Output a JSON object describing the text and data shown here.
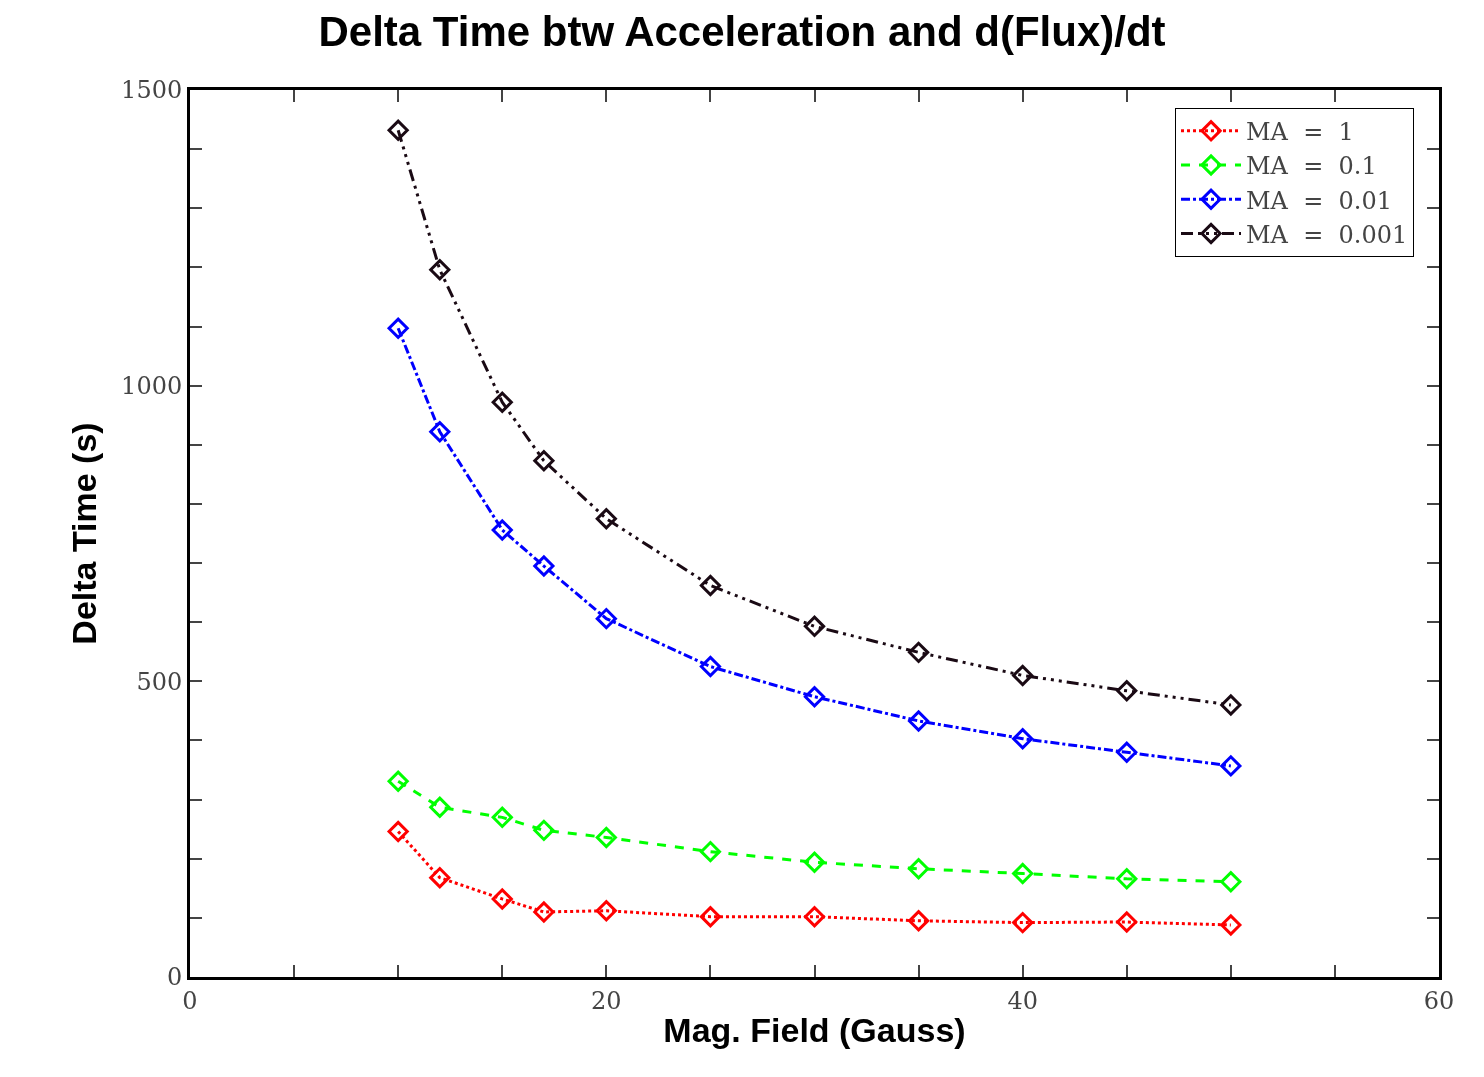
{
  "chart_data": {
    "type": "line",
    "title": "Delta Time btw Acceleration and d(Flux)/dt",
    "xlabel": "Mag. Field (Gauss)",
    "ylabel": "Delta Time (s)",
    "x": [
      10,
      12,
      15,
      17,
      20,
      25,
      30,
      35,
      40,
      45,
      50
    ],
    "series": [
      {
        "name": "MA  =  1",
        "color": "#ff0000",
        "line_style": "dotted",
        "values": [
          246,
          168,
          132,
          110,
          112,
          102,
          102,
          95,
          92,
          93,
          88
        ]
      },
      {
        "name": "MA  =  0.1",
        "color": "#00ff00",
        "line_style": "dashed",
        "values": [
          331,
          287,
          270,
          248,
          236,
          212,
          194,
          183,
          175,
          166,
          161
        ]
      },
      {
        "name": "MA  =  0.01",
        "color": "#0000ff",
        "line_style": "dashdot",
        "values": [
          1097,
          922,
          756,
          695,
          606,
          525,
          474,
          433,
          403,
          380,
          357
        ]
      },
      {
        "name": "MA  =  0.001",
        "color": "#1a0a14",
        "line_style": "dashdotdot",
        "values": [
          1432,
          1196,
          972,
          873,
          775,
          662,
          593,
          549,
          510,
          484,
          460
        ]
      }
    ],
    "marker": "diamond",
    "legend": "top right",
    "xlim": [
      0,
      60
    ],
    "ylim": [
      0,
      1500
    ],
    "xticks": [
      0,
      {
        "value": 5,
        "label": null
      },
      {
        "value": 10,
        "label": null
      },
      {
        "value": 15,
        "label": null
      },
      20,
      {
        "value": 25,
        "label": null
      },
      {
        "value": 30,
        "label": null
      },
      {
        "value": 35,
        "label": null
      },
      40,
      {
        "value": 45,
        "label": null
      },
      {
        "value": 50,
        "label": null
      },
      {
        "value": 55,
        "label": null
      },
      60
    ],
    "yticks": [
      0,
      {
        "value": 100,
        "label": null
      },
      {
        "value": 200,
        "label": null
      },
      {
        "value": 300,
        "label": null
      },
      {
        "value": 400,
        "label": null
      },
      500,
      {
        "value": 600,
        "label": null
      },
      {
        "value": 700,
        "label": null
      },
      {
        "value": 800,
        "label": null
      },
      {
        "value": 900,
        "label": null
      },
      1000,
      {
        "value": 1100,
        "label": null
      },
      {
        "value": 1200,
        "label": null
      },
      {
        "value": 1300,
        "label": null
      },
      {
        "value": 1400,
        "label": null
      },
      1500
    ]
  }
}
